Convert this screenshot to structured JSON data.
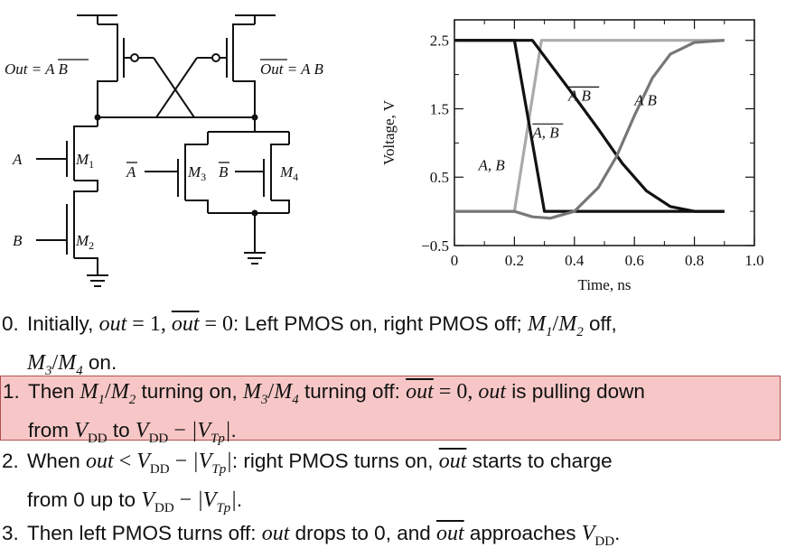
{
  "circuit": {
    "out_label": "Out = A B",
    "outbar_label": "Out = A B",
    "inputs": {
      "a": "A",
      "b": "B",
      "abar": "A",
      "bbar": "B"
    },
    "transistors": {
      "m1": "M1",
      "m2": "M2",
      "m3": "M3",
      "m4": "M4"
    }
  },
  "chart_data": {
    "type": "line",
    "xlabel": "Time, ns",
    "ylabel": "Voltage, V",
    "xlim": [
      0,
      1.0
    ],
    "ylim": [
      -0.5,
      2.8
    ],
    "x_ticks": [
      "0",
      "0.2",
      "0.4",
      "0.6",
      "0.8",
      "1.0"
    ],
    "y_ticks": [
      "−0.5",
      "0.5",
      "1.5",
      "2.5"
    ],
    "annotations": [
      "A B",
      "A B",
      "A, B",
      "A, B"
    ],
    "series": [
      {
        "label": "A, B",
        "color": "#aaaaaa",
        "points": [
          [
            0,
            0
          ],
          [
            0.2,
            0
          ],
          [
            0.29,
            2.5
          ],
          [
            0.9,
            2.5
          ]
        ]
      },
      {
        "label": "A, B (overbar)",
        "color": "#111111",
        "points": [
          [
            0,
            2.5
          ],
          [
            0.2,
            2.5
          ],
          [
            0.3,
            0
          ],
          [
            0.9,
            0
          ]
        ]
      },
      {
        "label": "A B (overbar)",
        "color": "#111111",
        "points": [
          [
            0,
            2.5
          ],
          [
            0.26,
            2.5
          ],
          [
            0.38,
            1.8
          ],
          [
            0.48,
            1.2
          ],
          [
            0.56,
            0.7
          ],
          [
            0.64,
            0.3
          ],
          [
            0.72,
            0.07
          ],
          [
            0.8,
            0
          ],
          [
            0.9,
            0
          ]
        ]
      },
      {
        "label": "A B",
        "color": "#777777",
        "points": [
          [
            0,
            0
          ],
          [
            0.2,
            0
          ],
          [
            0.26,
            -0.08
          ],
          [
            0.32,
            -0.1
          ],
          [
            0.4,
            0
          ],
          [
            0.48,
            0.35
          ],
          [
            0.54,
            0.8
          ],
          [
            0.6,
            1.4
          ],
          [
            0.66,
            1.95
          ],
          [
            0.72,
            2.3
          ],
          [
            0.8,
            2.47
          ],
          [
            0.9,
            2.5
          ]
        ]
      }
    ]
  },
  "steps": [
    {
      "num": "0.",
      "t1": "Initially, ",
      "t2": ": Left PMOS on, right PMOS off; ",
      "t3": " off,",
      "t4": " on."
    },
    {
      "num": "1.",
      "t1": "Then ",
      "t2": " turning on, ",
      "t3": " turning off: ",
      "t4": " is pulling down",
      "t5": "from ",
      "t6": " to "
    },
    {
      "num": "2.",
      "t1": "When ",
      "t2": ": right PMOS turns on, ",
      "t3": " starts to charge",
      "t4": "from 0 up to "
    },
    {
      "num": "3.",
      "t1": "Then left PMOS turns off: ",
      "t2": " drops to 0, and ",
      "t3": " approaches "
    }
  ]
}
